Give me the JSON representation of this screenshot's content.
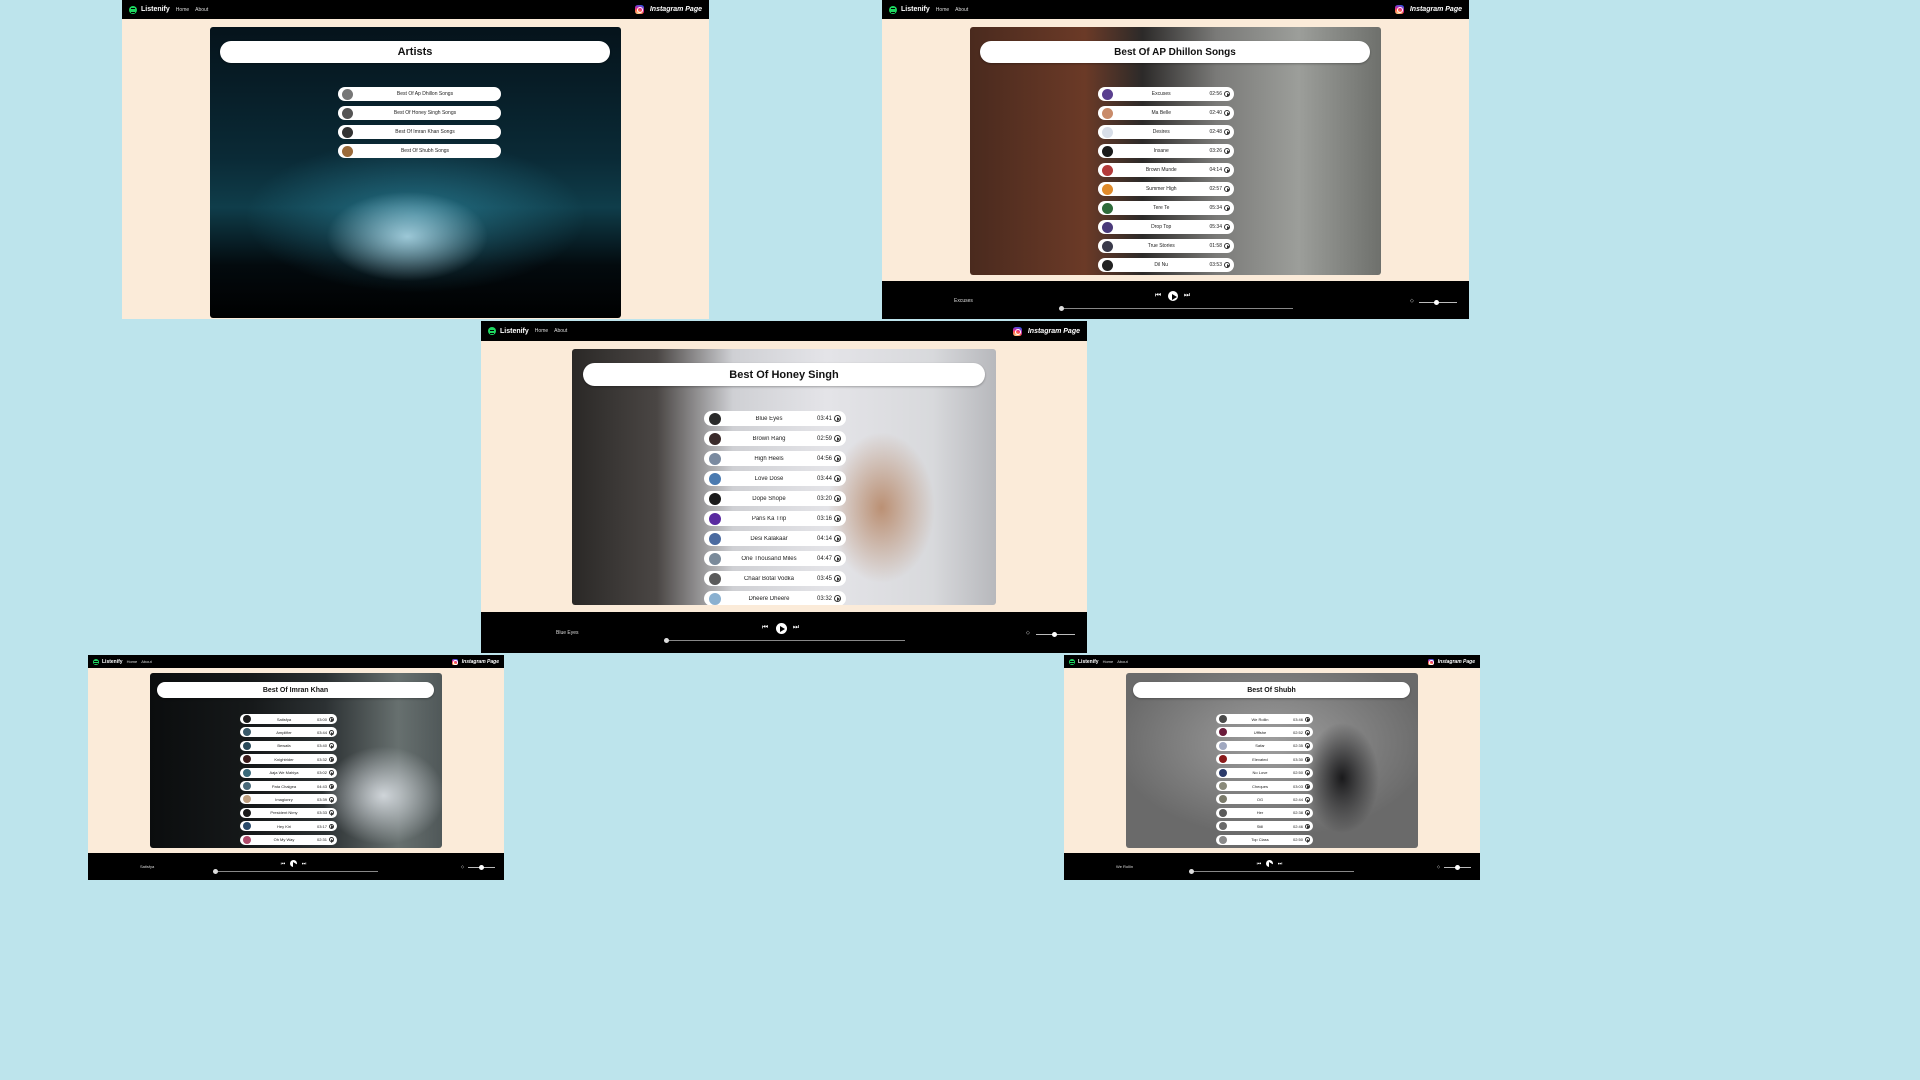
{
  "app": {
    "brand": "Listenify",
    "nav": [
      "Home",
      "About"
    ],
    "instagram_label": "Instagram Page"
  },
  "colors": {
    "background": "#bde4ec",
    "page": "#fbebd9",
    "navbar": "#000000",
    "brand_green": "#1ed760",
    "player": "#000000"
  },
  "artists_page": {
    "title": "Artists",
    "items": [
      {
        "label": "Best Of Ap Dhillon Songs",
        "thumb": "#777777"
      },
      {
        "label": "Best Of Honey Singh Songs",
        "thumb": "#555555"
      },
      {
        "label": "Best Of Imran Khan Songs",
        "thumb": "#333333"
      },
      {
        "label": "Best Of Shubh Songs",
        "thumb": "#9a6a3a"
      }
    ]
  },
  "ap_page": {
    "title": "Best Of AP Dhillon Songs",
    "songs": [
      {
        "name": "Excuses",
        "duration": "02:56",
        "thumb": "#5a3f8f"
      },
      {
        "name": "Ma Belle",
        "duration": "02:40",
        "thumb": "#c98b6a"
      },
      {
        "name": "Desires",
        "duration": "02:48",
        "thumb": "#d8dee8"
      },
      {
        "name": "Insane",
        "duration": "03:26",
        "thumb": "#1a1a1a"
      },
      {
        "name": "Brown Munde",
        "duration": "04:14",
        "thumb": "#b33a3a"
      },
      {
        "name": "Summer High",
        "duration": "02:57",
        "thumb": "#e08a2a"
      },
      {
        "name": "Tere Te",
        "duration": "05:34",
        "thumb": "#2e6b3a"
      },
      {
        "name": "Drop Top",
        "duration": "05:34",
        "thumb": "#4a3a7a"
      },
      {
        "name": "True Stories",
        "duration": "01:58",
        "thumb": "#3a3a4a"
      },
      {
        "name": "Dil Nu",
        "duration": "03:53",
        "thumb": "#222222"
      }
    ],
    "player": {
      "current": "Excuses",
      "progress": 0.0,
      "volume": 0.4
    }
  },
  "honey_page": {
    "title": "Best Of Honey Singh",
    "songs": [
      {
        "name": "Blue Eyes",
        "duration": "03:41",
        "thumb": "#2a2a2a"
      },
      {
        "name": "Brown Rang",
        "duration": "02:59",
        "thumb": "#3a2a2a"
      },
      {
        "name": "High Heels",
        "duration": "04:56",
        "thumb": "#7a8aa0"
      },
      {
        "name": "Love Dose",
        "duration": "03:44",
        "thumb": "#4a7ab0"
      },
      {
        "name": "Dope Shope",
        "duration": "03:20",
        "thumb": "#1a1a1a"
      },
      {
        "name": "Paris Ka Trip",
        "duration": "03:16",
        "thumb": "#5a2aa0"
      },
      {
        "name": "Desi Kalakaar",
        "duration": "04:14",
        "thumb": "#4a6aa0"
      },
      {
        "name": "One Thousand Miles",
        "duration": "04:47",
        "thumb": "#7a8a9a"
      },
      {
        "name": "Chaar Botal Vodka",
        "duration": "03:45",
        "thumb": "#5a5a5a"
      },
      {
        "name": "Dheere Dheere",
        "duration": "03:32",
        "thumb": "#8ab0d0"
      }
    ],
    "player": {
      "current": "Blue Eyes",
      "progress": 0.0,
      "volume": 0.4
    }
  },
  "imran_page": {
    "title": "Best Of Imran Khan",
    "songs": [
      {
        "name": "Satisfya",
        "duration": "03:00",
        "thumb": "#1a1a1a"
      },
      {
        "name": "Amplifier",
        "duration": "03:44",
        "thumb": "#3a5a6a"
      },
      {
        "name": "Bewafa",
        "duration": "03:40",
        "thumb": "#2a4a5a"
      },
      {
        "name": "Knightrider",
        "duration": "03:32",
        "thumb": "#3a1a1a"
      },
      {
        "name": "Aaja We Mahiya",
        "duration": "03:02",
        "thumb": "#3a6a7a"
      },
      {
        "name": "Pata Chalgea",
        "duration": "04:43",
        "thumb": "#4a6a7a"
      },
      {
        "name": "Imagionry",
        "duration": "03:39",
        "thumb": "#c0a080"
      },
      {
        "name": "President Nimy",
        "duration": "03:33",
        "thumb": "#1a1a1a"
      },
      {
        "name": "Hey Kiri",
        "duration": "03:17",
        "thumb": "#2a4a6a"
      },
      {
        "name": "Oh My Way",
        "duration": "02:31",
        "thumb": "#b04a6a"
      }
    ],
    "player": {
      "current": "Satisfya",
      "progress": 0.0,
      "volume": 0.4
    }
  },
  "shubh_page": {
    "title": "Best Of Shubh",
    "songs": [
      {
        "name": "We Rollin",
        "duration": "03:46",
        "thumb": "#4a4a4a"
      },
      {
        "name": "Ufffshe",
        "duration": "02:52",
        "thumb": "#6a1a3a"
      },
      {
        "name": "Safar",
        "duration": "02:35",
        "thumb": "#a0a8c0"
      },
      {
        "name": "Elevated",
        "duration": "03:30",
        "thumb": "#8a1a1a"
      },
      {
        "name": "No Love",
        "duration": "02:50",
        "thumb": "#2a3a6a"
      },
      {
        "name": "Cheques",
        "duration": "03:03",
        "thumb": "#8a8a7a"
      },
      {
        "name": "OG",
        "duration": "02:44",
        "thumb": "#7a7a6a"
      },
      {
        "name": "Her",
        "duration": "02:38",
        "thumb": "#5a5a5a"
      },
      {
        "name": "Still",
        "duration": "02:46",
        "thumb": "#6a6a6a"
      },
      {
        "name": "Top Class",
        "duration": "02:50",
        "thumb": "#8a8a8a"
      }
    ],
    "player": {
      "current": "We Rollin",
      "progress": 0.0,
      "volume": 0.4
    }
  }
}
